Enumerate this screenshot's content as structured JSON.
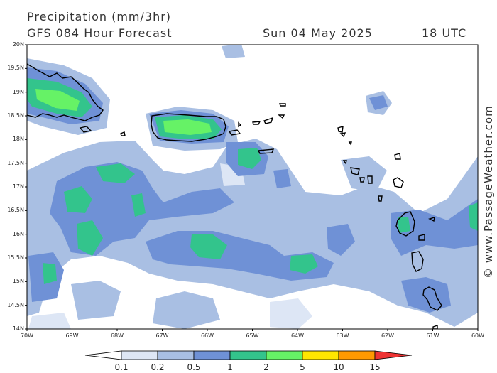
{
  "header": {
    "title": "Precipitation (mm/3hr)",
    "forecast": "GFS 084 Hour Forecast",
    "date": "Sun 04 May 2025",
    "time": "18 UTC"
  },
  "credit": "© www.PassageWeather.com",
  "axes": {
    "lat_labels": [
      "20N",
      "19.5N",
      "19N",
      "18.5N",
      "18N",
      "17.5N",
      "17N",
      "16.5N",
      "16N",
      "15.5N",
      "15N",
      "14.5N",
      "14N"
    ],
    "lon_labels": [
      "70W",
      "69W",
      "68W",
      "67W",
      "66W",
      "65W",
      "64W",
      "63W",
      "62W",
      "61W",
      "60W"
    ],
    "lat_range": [
      14,
      20
    ],
    "lon_range": [
      -70,
      -60
    ]
  },
  "legend": {
    "labels": [
      "0.1",
      "0.2",
      "0.5",
      "1",
      "2",
      "5",
      "10",
      "15"
    ],
    "colors": [
      "#ffffff",
      "#dde6f5",
      "#a9bfe3",
      "#6f91d6",
      "#33c48c",
      "#66f266",
      "#ffe600",
      "#ff9900",
      "#ee3333"
    ]
  }
}
